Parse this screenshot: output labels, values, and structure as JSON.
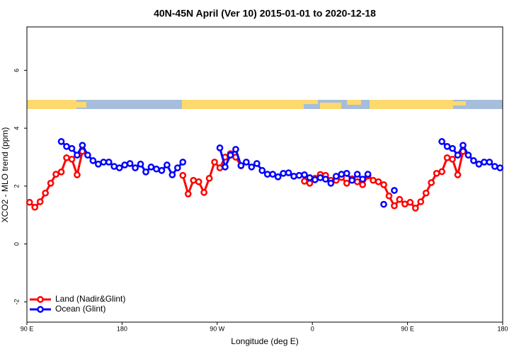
{
  "chart_data": {
    "type": "line",
    "title": "40N-45N April (Ver 10)   2015-01-01 to 2020-12-18",
    "x_label": "Longitude (deg E)",
    "y_label": "XCO2 - MLO trend (ppm)",
    "xlim": [
      90,
      540
    ],
    "ylim": [
      -2.7,
      7.5
    ],
    "xticks": [
      {
        "value": 90,
        "label": "90 E"
      },
      {
        "value": 180,
        "label": "180"
      },
      {
        "value": 270,
        "label": "90 W"
      },
      {
        "value": 360,
        "label": "0"
      },
      {
        "value": 450,
        "label": "90 E"
      },
      {
        "value": 540,
        "label": "180"
      }
    ],
    "yticks": [
      -2,
      0,
      2,
      4,
      6
    ],
    "legend": "bottom-left",
    "x": [
      92.5,
      97.5,
      102.5,
      107.5,
      112.5,
      117.5,
      122.5,
      127.5,
      132.5,
      137.5,
      142.5,
      147.5,
      152.5,
      157.5,
      162.5,
      167.5,
      172.5,
      177.5,
      182.5,
      187.5,
      192.5,
      197.5,
      202.5,
      207.5,
      212.5,
      217.5,
      222.5,
      227.5,
      232.5,
      237.5,
      242.5,
      247.5,
      252.5,
      257.5,
      262.5,
      267.5,
      272.5,
      277.5,
      282.5,
      287.5,
      292.5,
      297.5,
      302.5,
      307.5,
      312.5,
      317.5,
      322.5,
      327.5,
      332.5,
      337.5,
      342.5,
      347.5,
      352.5,
      357.5,
      362.5,
      367.5,
      372.5,
      377.5,
      382.5,
      387.5,
      392.5,
      397.5,
      402.5,
      407.5,
      412.5,
      417.5,
      422.5,
      427.5,
      432.5,
      437.5,
      442.5,
      447.5,
      452.5,
      457.5,
      462.5,
      467.5,
      472.5,
      477.5,
      482.5,
      487.5,
      492.5,
      497.5,
      502.5,
      507.5,
      512.5,
      517.5,
      522.5,
      527.5,
      532.5,
      537.5
    ],
    "series": [
      {
        "name": "Land (Nadir&Glint)",
        "color": "#ff0000",
        "values": [
          1.44,
          1.27,
          1.46,
          1.76,
          2.1,
          2.41,
          2.49,
          2.98,
          2.93,
          2.39,
          3.2,
          null,
          null,
          null,
          null,
          null,
          null,
          null,
          null,
          null,
          null,
          null,
          null,
          null,
          null,
          null,
          null,
          null,
          null,
          2.37,
          1.73,
          2.2,
          2.15,
          1.78,
          2.27,
          2.83,
          2.63,
          3.0,
          3.12,
          3.0,
          2.7,
          null,
          null,
          null,
          null,
          null,
          null,
          null,
          null,
          null,
          null,
          null,
          2.17,
          2.1,
          2.27,
          2.4,
          2.37,
          2.2,
          2.2,
          2.3,
          2.1,
          2.25,
          2.15,
          2.05,
          2.35,
          2.2,
          2.15,
          2.05,
          1.66,
          1.32,
          1.54,
          1.38,
          1.44,
          1.24,
          1.46,
          1.76,
          2.12,
          2.44,
          2.5,
          2.98,
          2.93,
          2.39,
          3.2,
          null,
          null,
          null,
          null,
          null,
          null,
          null
        ]
      },
      {
        "name": "Ocean (Glint)",
        "color": "#0000ff",
        "values": [
          null,
          null,
          null,
          null,
          null,
          null,
          3.54,
          3.37,
          3.3,
          3.07,
          3.41,
          3.07,
          2.88,
          2.76,
          2.83,
          2.83,
          2.68,
          2.63,
          2.73,
          2.78,
          2.63,
          2.76,
          2.49,
          2.66,
          2.59,
          2.54,
          2.73,
          2.39,
          2.63,
          2.83,
          null,
          null,
          null,
          null,
          null,
          null,
          3.32,
          2.66,
          3.07,
          3.27,
          2.71,
          2.83,
          2.66,
          2.78,
          2.54,
          2.41,
          2.41,
          2.32,
          2.44,
          2.46,
          2.34,
          2.37,
          2.39,
          2.29,
          2.22,
          2.29,
          2.24,
          2.1,
          2.34,
          2.41,
          2.44,
          2.2,
          2.41,
          2.24,
          2.41,
          null,
          null,
          1.37,
          null,
          1.85,
          null,
          null,
          null,
          null,
          null,
          null,
          null,
          null,
          3.54,
          3.37,
          3.3,
          3.07,
          3.41,
          3.07,
          2.88,
          2.76,
          2.83,
          2.83,
          2.68,
          2.63
        ]
      }
    ]
  }
}
